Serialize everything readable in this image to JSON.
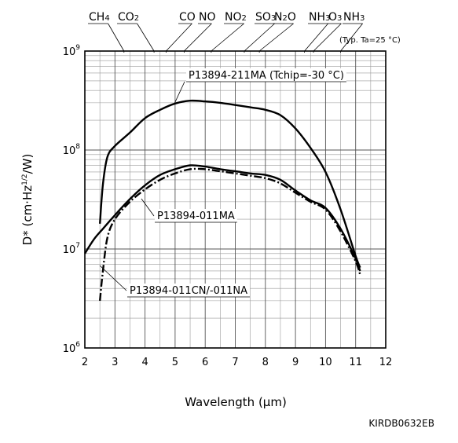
{
  "chart_data": {
    "type": "line",
    "xlabel": "Wavelength (µm)",
    "ylabel": "D* (cm·Hz1/2/W)",
    "xlim": [
      2,
      12
    ],
    "ylim": [
      1000000,
      1000000000
    ],
    "y_scale": "log",
    "grid": true,
    "x_ticks": [
      "2",
      "3",
      "4",
      "5",
      "6",
      "7",
      "8",
      "9",
      "10",
      "11",
      "12"
    ],
    "y_ticks": [
      {
        "base": "10",
        "exp": "6",
        "value": 1000000
      },
      {
        "base": "10",
        "exp": "7",
        "value": 10000000
      },
      {
        "base": "10",
        "exp": "8",
        "value": 100000000
      },
      {
        "base": "10",
        "exp": "9",
        "value": 1000000000
      }
    ],
    "condition_note": "(Typ. Ta=25 °C)",
    "gas_markers": [
      {
        "label": "CH4",
        "wavelength": 3.3
      },
      {
        "label": "CO2",
        "wavelength": 4.3
      },
      {
        "label": "CO",
        "wavelength": 4.7
      },
      {
        "label": "NO",
        "wavelength": 5.3
      },
      {
        "label": "NO2",
        "wavelength": 6.2
      },
      {
        "label": "SO3",
        "wavelength": 7.3
      },
      {
        "label": "N2O",
        "wavelength": 7.8
      },
      {
        "label": "NH3",
        "wavelength": 9.3
      },
      {
        "label": "O3",
        "wavelength": 9.6
      },
      {
        "label": "NH3",
        "wavelength": 10.5
      }
    ],
    "series": [
      {
        "name": "P13894-211MA (Tchip=-30 °C)",
        "style": "solid",
        "x": [
          2.5,
          2.6,
          2.75,
          3.0,
          3.5,
          4.0,
          4.5,
          5.0,
          5.5,
          6.0,
          6.5,
          7.0,
          7.5,
          8.0,
          8.5,
          9.0,
          9.5,
          10.0,
          10.5,
          11.0,
          11.15
        ],
        "y": [
          18000000,
          45000000,
          85000000,
          110000000,
          150000000,
          210000000,
          255000000,
          295000000,
          315000000,
          310000000,
          300000000,
          285000000,
          270000000,
          255000000,
          225000000,
          165000000,
          105000000,
          60000000,
          25000000,
          8500000,
          6500000
        ]
      },
      {
        "name": "P13894-011MA",
        "style": "solid",
        "x": [
          2.0,
          2.3,
          2.6,
          3.0,
          3.5,
          4.0,
          4.5,
          5.0,
          5.5,
          6.0,
          6.5,
          7.0,
          7.5,
          8.0,
          8.5,
          9.0,
          9.5,
          10.0,
          10.5,
          11.0,
          11.15
        ],
        "y": [
          9000000,
          12500000,
          16000000,
          22000000,
          32000000,
          44000000,
          56000000,
          64000000,
          70000000,
          68000000,
          64000000,
          61000000,
          58000000,
          56000000,
          50000000,
          39000000,
          31000000,
          26000000,
          16000000,
          8000000,
          6000000
        ]
      },
      {
        "name": "P13894-011CN/-011NA",
        "style": "dash-dot",
        "x": [
          2.5,
          2.6,
          2.75,
          3.0,
          3.5,
          4.0,
          4.5,
          5.0,
          5.5,
          6.0,
          6.5,
          7.0,
          7.5,
          8.0,
          8.5,
          9.0,
          9.5,
          10.0,
          10.5,
          11.0,
          11.15
        ],
        "y": [
          3000000,
          6000000,
          13000000,
          20000000,
          30000000,
          40000000,
          50000000,
          58000000,
          64000000,
          64000000,
          61000000,
          58000000,
          55000000,
          52000000,
          46000000,
          37000000,
          30000000,
          25000000,
          15000000,
          7500000,
          5500000
        ]
      }
    ]
  },
  "figure_code": "KIRDB0632EB"
}
